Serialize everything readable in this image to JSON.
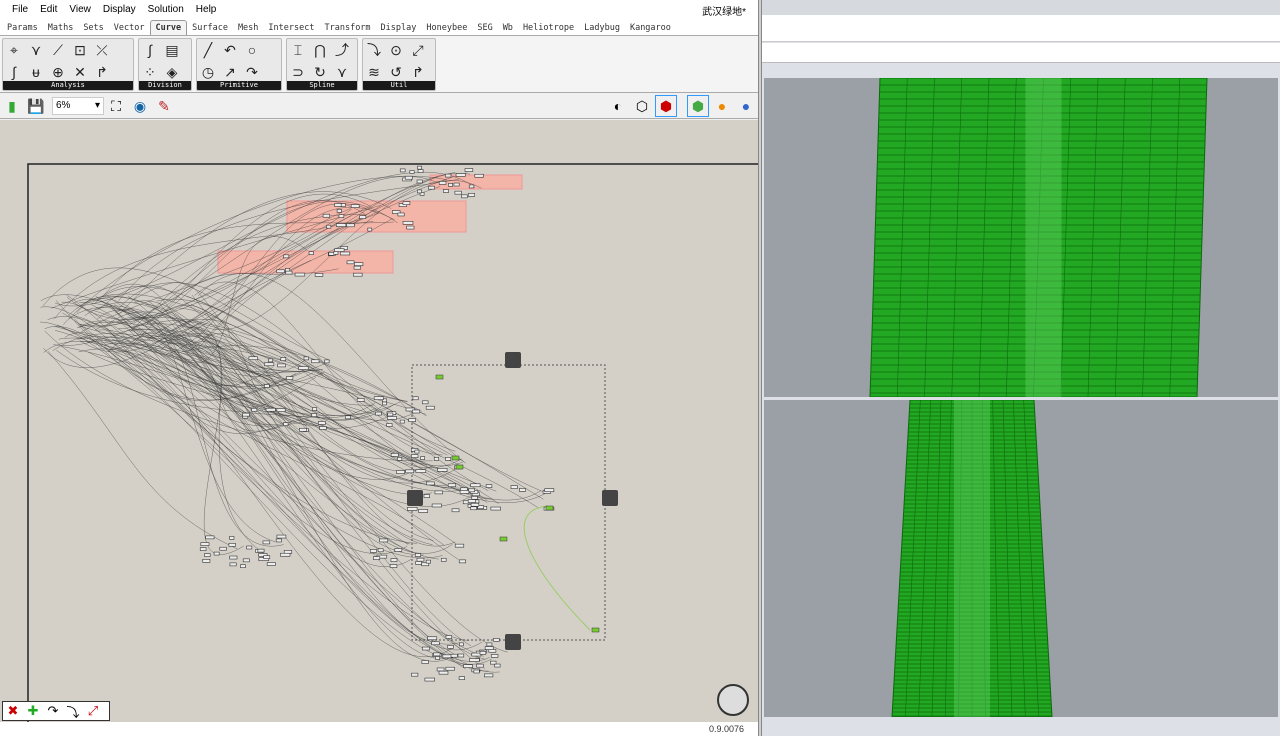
{
  "menu": [
    "File",
    "Edit",
    "View",
    "Display",
    "Solution",
    "Help"
  ],
  "document_title": "武汉绿地*",
  "tabs": [
    "Params",
    "Maths",
    "Sets",
    "Vector",
    "Curve",
    "Surface",
    "Mesh",
    "Intersect",
    "Transform",
    "Display",
    "Honeybee",
    "SEG",
    "Wb",
    "Heliotrope",
    "Ladybug",
    "Kangaroo"
  ],
  "active_tab": "Curve",
  "panels": [
    {
      "label": "Analysis",
      "icons": [
        "⌖",
        "∫",
        "⋎",
        "ᵾ",
        "⟋",
        "⊕",
        "⊡",
        "✕",
        "⤫",
        "↱"
      ]
    },
    {
      "label": "Division",
      "icons": [
        "∫",
        "⁘",
        "▤",
        "◈"
      ]
    },
    {
      "label": "Primitive",
      "icons": [
        "╱",
        "◷",
        "↶",
        "↗",
        "○",
        "↷"
      ]
    },
    {
      "label": "Spline",
      "icons": [
        "⌶",
        "⊃",
        "⋂",
        "↻",
        "⤴",
        "⋎"
      ]
    },
    {
      "label": "Util",
      "icons": [
        "⤵",
        "≋",
        "⊙",
        "↺",
        "⤢",
        "↱"
      ]
    }
  ],
  "toolbar": {
    "zoom_value": "6%"
  },
  "status": {
    "version": "0.9.0076"
  },
  "colors": {
    "group_fill": "#f3b5a8",
    "wire": "#3a3a3a",
    "viewport_bg": "#9ba0a6",
    "geometry_green": "#1fae1f"
  }
}
